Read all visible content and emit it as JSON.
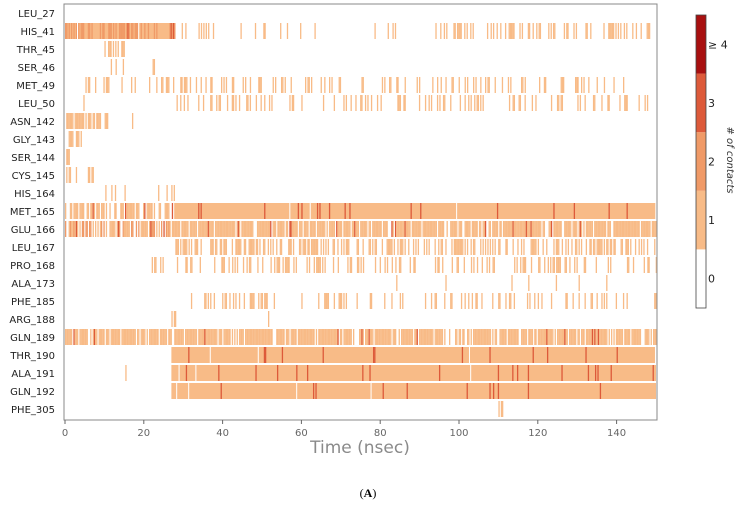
{
  "chart_data": {
    "type": "heatmap",
    "title": "",
    "xlabel": "Time (nsec)",
    "ylabel": "",
    "xlim": [
      0,
      150
    ],
    "x_ticks": [
      0,
      20,
      40,
      60,
      80,
      100,
      120,
      140
    ],
    "residues": [
      "LEU_27",
      "HIS_41",
      "THR_45",
      "SER_46",
      "MET_49",
      "LEU_50",
      "ASN_142",
      "GLY_143",
      "SER_144",
      "CYS_145",
      "HIS_164",
      "MET_165",
      "GLU_166",
      "LEU_167",
      "PRO_168",
      "ALA_173",
      "PHE_185",
      "ARG_188",
      "GLN_189",
      "THR_190",
      "ALA_191",
      "GLN_192",
      "PHE_305"
    ],
    "colorbar": {
      "label": "# of contacts",
      "tick_labels": [
        "0",
        "1",
        "2",
        "3",
        "≥ 4"
      ],
      "levels": [
        {
          "value": 0,
          "color": "#ffffff"
        },
        {
          "value": 1,
          "color": "#f8bb87"
        },
        {
          "value": 2,
          "color": "#f09a67"
        },
        {
          "value": 3,
          "color": "#dd5a3a"
        },
        {
          "value": 4,
          "color": "#a81010"
        }
      ]
    },
    "contact_segments": [
      {
        "residue": "HIS_41",
        "segments": [
          {
            "start": 0,
            "end": 28,
            "density": 0.95,
            "level": 2
          },
          {
            "start": 29,
            "end": 56,
            "density": 0.18,
            "level": 1
          },
          {
            "start": 56,
            "end": 94,
            "density": 0.05,
            "level": 1
          },
          {
            "start": 94,
            "end": 150,
            "density": 0.35,
            "level": 1
          }
        ]
      },
      {
        "residue": "THR_45",
        "segments": [
          {
            "start": 10,
            "end": 15,
            "density": 0.5,
            "level": 1
          }
        ]
      },
      {
        "residue": "SER_46",
        "segments": [
          {
            "start": 11,
            "end": 15,
            "density": 0.3,
            "level": 1
          },
          {
            "start": 21,
            "end": 23,
            "density": 0.4,
            "level": 1
          }
        ]
      },
      {
        "residue": "MET_49",
        "segments": [
          {
            "start": 0,
            "end": 150,
            "density": 0.18,
            "level": 1
          }
        ]
      },
      {
        "residue": "LEU_50",
        "segments": [
          {
            "start": 1,
            "end": 10,
            "density": 0.1,
            "level": 1
          },
          {
            "start": 28,
            "end": 150,
            "density": 0.22,
            "level": 1
          }
        ]
      },
      {
        "residue": "ASN_142",
        "segments": [
          {
            "start": 0,
            "end": 11,
            "density": 0.65,
            "level": 1
          },
          {
            "start": 17,
            "end": 19,
            "density": 0.3,
            "level": 1
          }
        ]
      },
      {
        "residue": "GLY_143",
        "segments": [
          {
            "start": 0,
            "end": 5,
            "density": 0.5,
            "level": 1
          }
        ]
      },
      {
        "residue": "SER_144",
        "segments": [
          {
            "start": 0,
            "end": 1,
            "density": 0.4,
            "level": 1
          }
        ]
      },
      {
        "residue": "CYS_145",
        "segments": [
          {
            "start": 0,
            "end": 8,
            "density": 0.45,
            "level": 1
          }
        ]
      },
      {
        "residue": "HIS_164",
        "segments": [
          {
            "start": 9,
            "end": 28,
            "density": 0.2,
            "level": 1
          }
        ]
      },
      {
        "residue": "MET_165",
        "segments": [
          {
            "start": 0,
            "end": 28,
            "density": 0.7,
            "level": 1
          },
          {
            "start": 28,
            "end": 150,
            "density": 0.96,
            "level": 1
          }
        ]
      },
      {
        "residue": "GLU_166",
        "segments": [
          {
            "start": 0,
            "end": 28,
            "density": 0.75,
            "level": 2
          },
          {
            "start": 28,
            "end": 150,
            "density": 0.82,
            "level": 1
          }
        ]
      },
      {
        "residue": "LEU_167",
        "segments": [
          {
            "start": 28,
            "end": 150,
            "density": 0.45,
            "level": 1
          }
        ]
      },
      {
        "residue": "PRO_168",
        "segments": [
          {
            "start": 22,
            "end": 150,
            "density": 0.28,
            "level": 1
          }
        ]
      },
      {
        "residue": "ALA_173",
        "segments": [
          {
            "start": 74,
            "end": 146,
            "density": 0.04,
            "level": 1
          }
        ]
      },
      {
        "residue": "PHE_185",
        "segments": [
          {
            "start": 28,
            "end": 150,
            "density": 0.25,
            "level": 1
          }
        ]
      },
      {
        "residue": "ARG_188",
        "segments": [
          {
            "start": 27,
            "end": 28,
            "density": 0.8,
            "level": 1
          },
          {
            "start": 50,
            "end": 52,
            "density": 0.3,
            "level": 1
          }
        ]
      },
      {
        "residue": "GLN_189",
        "segments": [
          {
            "start": 0,
            "end": 150,
            "density": 0.82,
            "level": 1
          }
        ]
      },
      {
        "residue": "THR_190",
        "segments": [
          {
            "start": 27,
            "end": 150,
            "density": 0.97,
            "level": 1
          }
        ]
      },
      {
        "residue": "ALA_191",
        "segments": [
          {
            "start": 15,
            "end": 16,
            "density": 0.5,
            "level": 1
          },
          {
            "start": 27,
            "end": 150,
            "density": 0.98,
            "level": 1
          }
        ]
      },
      {
        "residue": "GLN_192",
        "segments": [
          {
            "start": 27,
            "end": 150,
            "density": 0.96,
            "level": 1
          }
        ]
      },
      {
        "residue": "PHE_305",
        "segments": [
          {
            "start": 110,
            "end": 111,
            "density": 0.8,
            "level": 1
          }
        ]
      }
    ]
  },
  "caption": "(A)"
}
